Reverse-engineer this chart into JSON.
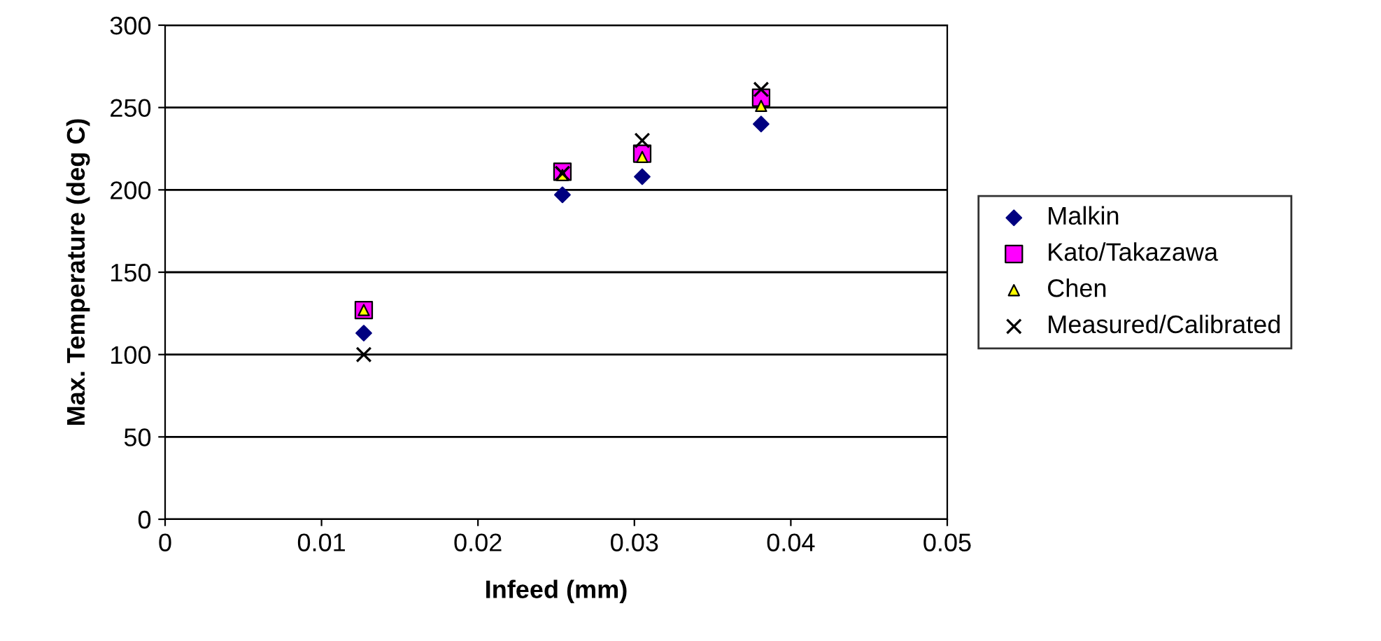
{
  "chart_data": {
    "type": "scatter",
    "xlabel": "Infeed (mm)",
    "ylabel": "Max. Temperature (deg C)",
    "x": [
      0.0127,
      0.0254,
      0.0305,
      0.0381
    ],
    "series": [
      {
        "name": "Malkin",
        "color": "#000080",
        "marker": "diamond",
        "values": [
          113,
          197,
          208,
          240
        ]
      },
      {
        "name": "Kato/Takazawa",
        "color": "#ff00ff",
        "marker": "square",
        "values": [
          127,
          211,
          222,
          256
        ]
      },
      {
        "name": "Chen",
        "color": "#ffff00",
        "marker": "triangle",
        "values": [
          127,
          209,
          220,
          251
        ]
      },
      {
        "name": "Measured/Calibrated",
        "color": "#000000",
        "marker": "cross",
        "values": [
          100,
          210,
          230,
          261
        ]
      }
    ],
    "xlim": [
      0,
      0.05
    ],
    "xticks": [
      0,
      0.01,
      0.02,
      0.03,
      0.04,
      0.05
    ],
    "ylim": [
      0,
      300
    ],
    "yticks": [
      0,
      50,
      100,
      150,
      200,
      250,
      300
    ],
    "grid": "y",
    "legend": "right"
  }
}
